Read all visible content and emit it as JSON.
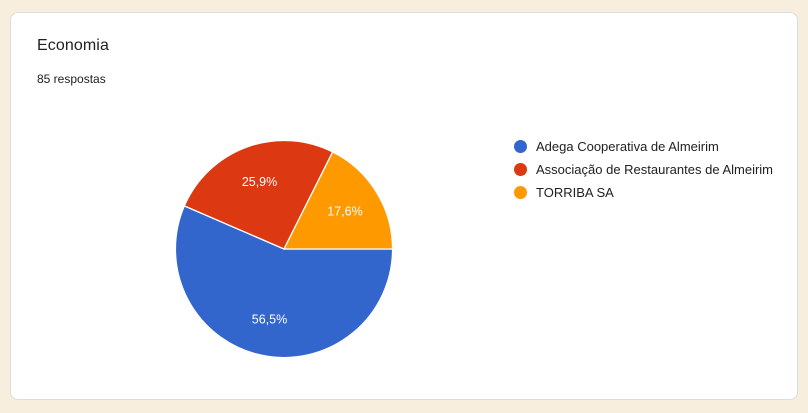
{
  "page": {
    "background_color": "#f8eedd",
    "card_border_color": "#dadce0"
  },
  "card": {
    "title": "Economia",
    "responses_label": "85 respostas"
  },
  "chart_data": {
    "type": "pie",
    "title": "Economia",
    "total_responses": 85,
    "legend_position": "right",
    "start_angle": "east-clockwise",
    "label_color": "#ffffff",
    "slices": [
      {
        "label": "Adega Cooperativa de Almeirim",
        "percent": 56.5,
        "display": "56,5%",
        "color": "#3366cc"
      },
      {
        "label": "Associação de Restaurantes de Almeirim",
        "percent": 25.9,
        "display": "25,9%",
        "color": "#dc3912"
      },
      {
        "label": "TORRIBA SA",
        "percent": 17.6,
        "display": "17,6%",
        "color": "#ff9900"
      }
    ]
  }
}
